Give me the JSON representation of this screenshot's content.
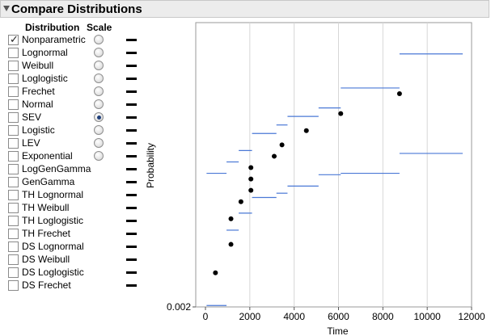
{
  "panel": {
    "title": "Compare Distributions"
  },
  "columns": {
    "distribution": "Distribution",
    "scale": "Scale"
  },
  "distributions": [
    {
      "label": "Nonparametric",
      "checked": true,
      "has_scale": true,
      "scale_selected": false
    },
    {
      "label": "Lognormal",
      "checked": false,
      "has_scale": true,
      "scale_selected": false
    },
    {
      "label": "Weibull",
      "checked": false,
      "has_scale": true,
      "scale_selected": false
    },
    {
      "label": "Loglogistic",
      "checked": false,
      "has_scale": true,
      "scale_selected": false
    },
    {
      "label": "Frechet",
      "checked": false,
      "has_scale": true,
      "scale_selected": false
    },
    {
      "label": "Normal",
      "checked": false,
      "has_scale": true,
      "scale_selected": false
    },
    {
      "label": "SEV",
      "checked": false,
      "has_scale": true,
      "scale_selected": true
    },
    {
      "label": "Logistic",
      "checked": false,
      "has_scale": true,
      "scale_selected": false
    },
    {
      "label": "LEV",
      "checked": false,
      "has_scale": true,
      "scale_selected": false
    },
    {
      "label": "Exponential",
      "checked": false,
      "has_scale": true,
      "scale_selected": false
    },
    {
      "label": "LogGenGamma",
      "checked": false,
      "has_scale": false,
      "scale_selected": false
    },
    {
      "label": "GenGamma",
      "checked": false,
      "has_scale": false,
      "scale_selected": false
    },
    {
      "label": "TH Lognormal",
      "checked": false,
      "has_scale": false,
      "scale_selected": false
    },
    {
      "label": "TH Weibull",
      "checked": false,
      "has_scale": false,
      "scale_selected": false
    },
    {
      "label": "TH Loglogistic",
      "checked": false,
      "has_scale": false,
      "scale_selected": false
    },
    {
      "label": "TH Frechet",
      "checked": false,
      "has_scale": false,
      "scale_selected": false
    },
    {
      "label": "DS Lognormal",
      "checked": false,
      "has_scale": false,
      "scale_selected": false
    },
    {
      "label": "DS Weibull",
      "checked": false,
      "has_scale": false,
      "scale_selected": false
    },
    {
      "label": "DS Loglogistic",
      "checked": false,
      "has_scale": false,
      "scale_selected": false
    },
    {
      "label": "DS Frechet",
      "checked": false,
      "has_scale": false,
      "scale_selected": false
    }
  ],
  "colors": {
    "band": "#4a78d6",
    "point": "#000000",
    "grid": "#d6d6d6",
    "header_bg": "#ececec"
  },
  "chart_data": {
    "type": "scatter",
    "xlabel": "Time",
    "ylabel": "Probability",
    "xlim": [
      0,
      12000
    ],
    "xticks": [
      "0",
      "2000",
      "4000",
      "6000",
      "8000",
      "10000",
      "12000"
    ],
    "y_tick_labels": [
      "0.002"
    ],
    "grid": true,
    "points": [
      {
        "x": 450,
        "p": 0.12
      },
      {
        "x": 1150,
        "p": 0.22
      },
      {
        "x": 1150,
        "p": 0.31
      },
      {
        "x": 1600,
        "p": 0.37
      },
      {
        "x": 2050,
        "p": 0.41
      },
      {
        "x": 2050,
        "p": 0.45
      },
      {
        "x": 2050,
        "p": 0.49
      },
      {
        "x": 3100,
        "p": 0.53
      },
      {
        "x": 3450,
        "p": 0.57
      },
      {
        "x": 4550,
        "p": 0.62
      },
      {
        "x": 6100,
        "p": 0.68
      },
      {
        "x": 8750,
        "p": 0.75
      }
    ],
    "upper_band": [
      {
        "x0": 50,
        "x1": 950,
        "p": 0.47
      },
      {
        "x0": 950,
        "x1": 1500,
        "p": 0.51
      },
      {
        "x0": 1500,
        "x1": 2100,
        "p": 0.55
      },
      {
        "x0": 2100,
        "x1": 3200,
        "p": 0.61
      },
      {
        "x0": 3200,
        "x1": 3700,
        "p": 0.64
      },
      {
        "x0": 3700,
        "x1": 5100,
        "p": 0.67
      },
      {
        "x0": 5100,
        "x1": 6100,
        "p": 0.7
      },
      {
        "x0": 6100,
        "x1": 8750,
        "p": 0.77
      },
      {
        "x0": 8750,
        "x1": 11600,
        "p": 0.89
      }
    ],
    "lower_band": [
      {
        "x0": 50,
        "x1": 950,
        "p": 0.005
      },
      {
        "x0": 950,
        "x1": 1500,
        "p": 0.27
      },
      {
        "x0": 1500,
        "x1": 2100,
        "p": 0.33
      },
      {
        "x0": 2100,
        "x1": 3200,
        "p": 0.385
      },
      {
        "x0": 3200,
        "x1": 3700,
        "p": 0.4
      },
      {
        "x0": 3700,
        "x1": 5100,
        "p": 0.425
      },
      {
        "x0": 5100,
        "x1": 6100,
        "p": 0.465
      },
      {
        "x0": 6100,
        "x1": 8750,
        "p": 0.47
      },
      {
        "x0": 8750,
        "x1": 11600,
        "p": 0.54
      }
    ]
  }
}
